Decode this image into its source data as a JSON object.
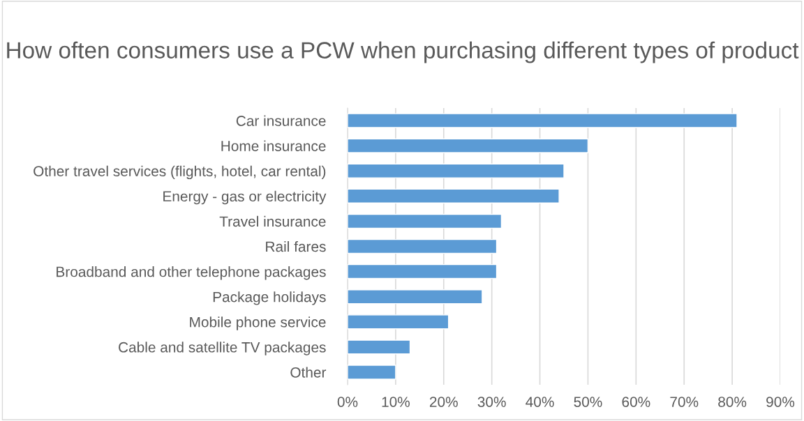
{
  "chart_data": {
    "type": "bar",
    "orientation": "horizontal",
    "title": "How often consumers use a PCW when purchasing different types of product",
    "categories": [
      "Car insurance",
      "Home insurance",
      "Other travel services (flights, hotel, car rental)",
      "Energy - gas or electricity",
      "Travel insurance",
      "Rail fares",
      "Broadband and other telephone packages",
      "Package holidays",
      "Mobile phone service",
      "Cable and satellite TV packages",
      "Other"
    ],
    "values": [
      81,
      50,
      45,
      44,
      32,
      31,
      31,
      28,
      21,
      13,
      10
    ],
    "color": "#5b9bd5",
    "xlim": [
      0,
      90
    ],
    "xticks": [
      {
        "value": 0,
        "label": "0%"
      },
      {
        "value": 10,
        "label": "10%"
      },
      {
        "value": 20,
        "label": "20%"
      },
      {
        "value": 30,
        "label": "30%"
      },
      {
        "value": 40,
        "label": "40%"
      },
      {
        "value": 50,
        "label": "50%"
      },
      {
        "value": 60,
        "label": "60%"
      },
      {
        "value": 70,
        "label": "70%"
      },
      {
        "value": 80,
        "label": "80%"
      },
      {
        "value": 90,
        "label": "90%"
      }
    ],
    "grid": "x"
  }
}
